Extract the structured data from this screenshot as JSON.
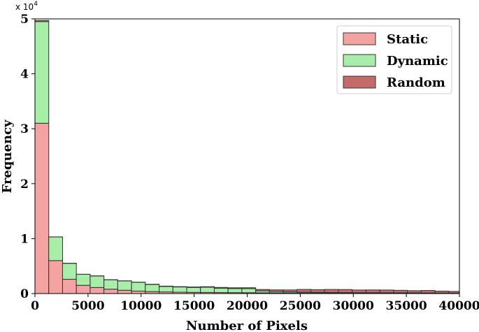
{
  "chart_data": {
    "type": "bar",
    "stacked": true,
    "xlabel": "Number of Pixels",
    "ylabel": "Frequency",
    "y_offset_text": "x 10",
    "y_offset_exponent": "4",
    "xlim": [
      0,
      40000
    ],
    "ylim": [
      0,
      50000
    ],
    "x_ticks": [
      0,
      5000,
      10000,
      15000,
      20000,
      25000,
      30000,
      35000,
      40000
    ],
    "x_tick_labels": [
      "0",
      "5000",
      "10000",
      "15000",
      "20000",
      "25000",
      "30000",
      "35000",
      "40000"
    ],
    "y_ticks": [
      0,
      10000,
      20000,
      30000,
      40000,
      50000
    ],
    "y_tick_labels": [
      "0",
      "1",
      "2",
      "3",
      "4",
      "5"
    ],
    "bin_width": 1300,
    "bin_start": 0,
    "legend_position": "top-right",
    "series": [
      {
        "name": "Static",
        "color": "#f4a3a3",
        "values": [
          31000,
          6000,
          2600,
          1500,
          1100,
          800,
          600,
          450,
          350,
          300,
          250,
          220,
          200,
          180,
          170,
          160,
          140,
          120,
          110,
          100,
          90,
          85,
          80,
          75,
          70,
          65,
          60,
          55,
          50,
          45,
          40
        ]
      },
      {
        "name": "Dynamic",
        "color": "#a8eda8",
        "values": [
          18500,
          4300,
          2900,
          2000,
          2100,
          1700,
          1700,
          1600,
          1300,
          1000,
          950,
          900,
          950,
          800,
          750,
          750,
          350,
          250,
          200,
          150,
          120,
          110,
          100,
          90,
          90,
          80,
          80,
          70,
          60,
          50,
          50
        ]
      },
      {
        "name": "Random",
        "color": "#c56a6a",
        "values": [
          200,
          20,
          20,
          20,
          20,
          20,
          20,
          20,
          50,
          60,
          60,
          80,
          100,
          130,
          130,
          150,
          250,
          300,
          350,
          500,
          500,
          550,
          550,
          480,
          500,
          500,
          450,
          400,
          450,
          350,
          300
        ]
      }
    ]
  }
}
